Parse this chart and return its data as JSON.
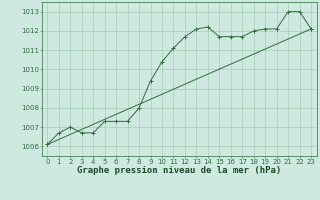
{
  "title": "Graphe pression niveau de la mer (hPa)",
  "bg_color": "#ceeae0",
  "grid_color": "#a8cdb8",
  "line_color": "#2d6e3a",
  "xlim": [
    -0.5,
    23.5
  ],
  "ylim": [
    1005.5,
    1013.5
  ],
  "yticks": [
    1006,
    1007,
    1008,
    1009,
    1010,
    1011,
    1012,
    1013
  ],
  "xticks": [
    0,
    1,
    2,
    3,
    4,
    5,
    6,
    7,
    8,
    9,
    10,
    11,
    12,
    13,
    14,
    15,
    16,
    17,
    18,
    19,
    20,
    21,
    22,
    23
  ],
  "series1_x": [
    0,
    1,
    2,
    3,
    4,
    5,
    6,
    7,
    8,
    9,
    10,
    11,
    12,
    13,
    14,
    15,
    16,
    17,
    18,
    19,
    20,
    21,
    22,
    23
  ],
  "series1_y": [
    1006.1,
    1006.7,
    1007.0,
    1006.7,
    1006.7,
    1007.3,
    1007.3,
    1007.3,
    1008.0,
    1009.4,
    1010.4,
    1011.1,
    1011.7,
    1012.1,
    1012.2,
    1011.7,
    1011.7,
    1011.7,
    1012.0,
    1012.1,
    1012.1,
    1013.0,
    1013.0,
    1012.1
  ],
  "series2_x": [
    0,
    23
  ],
  "series2_y": [
    1006.1,
    1012.1
  ],
  "title_fontsize": 6.5,
  "tick_fontsize": 5.0,
  "label_color": "#1a4a28"
}
